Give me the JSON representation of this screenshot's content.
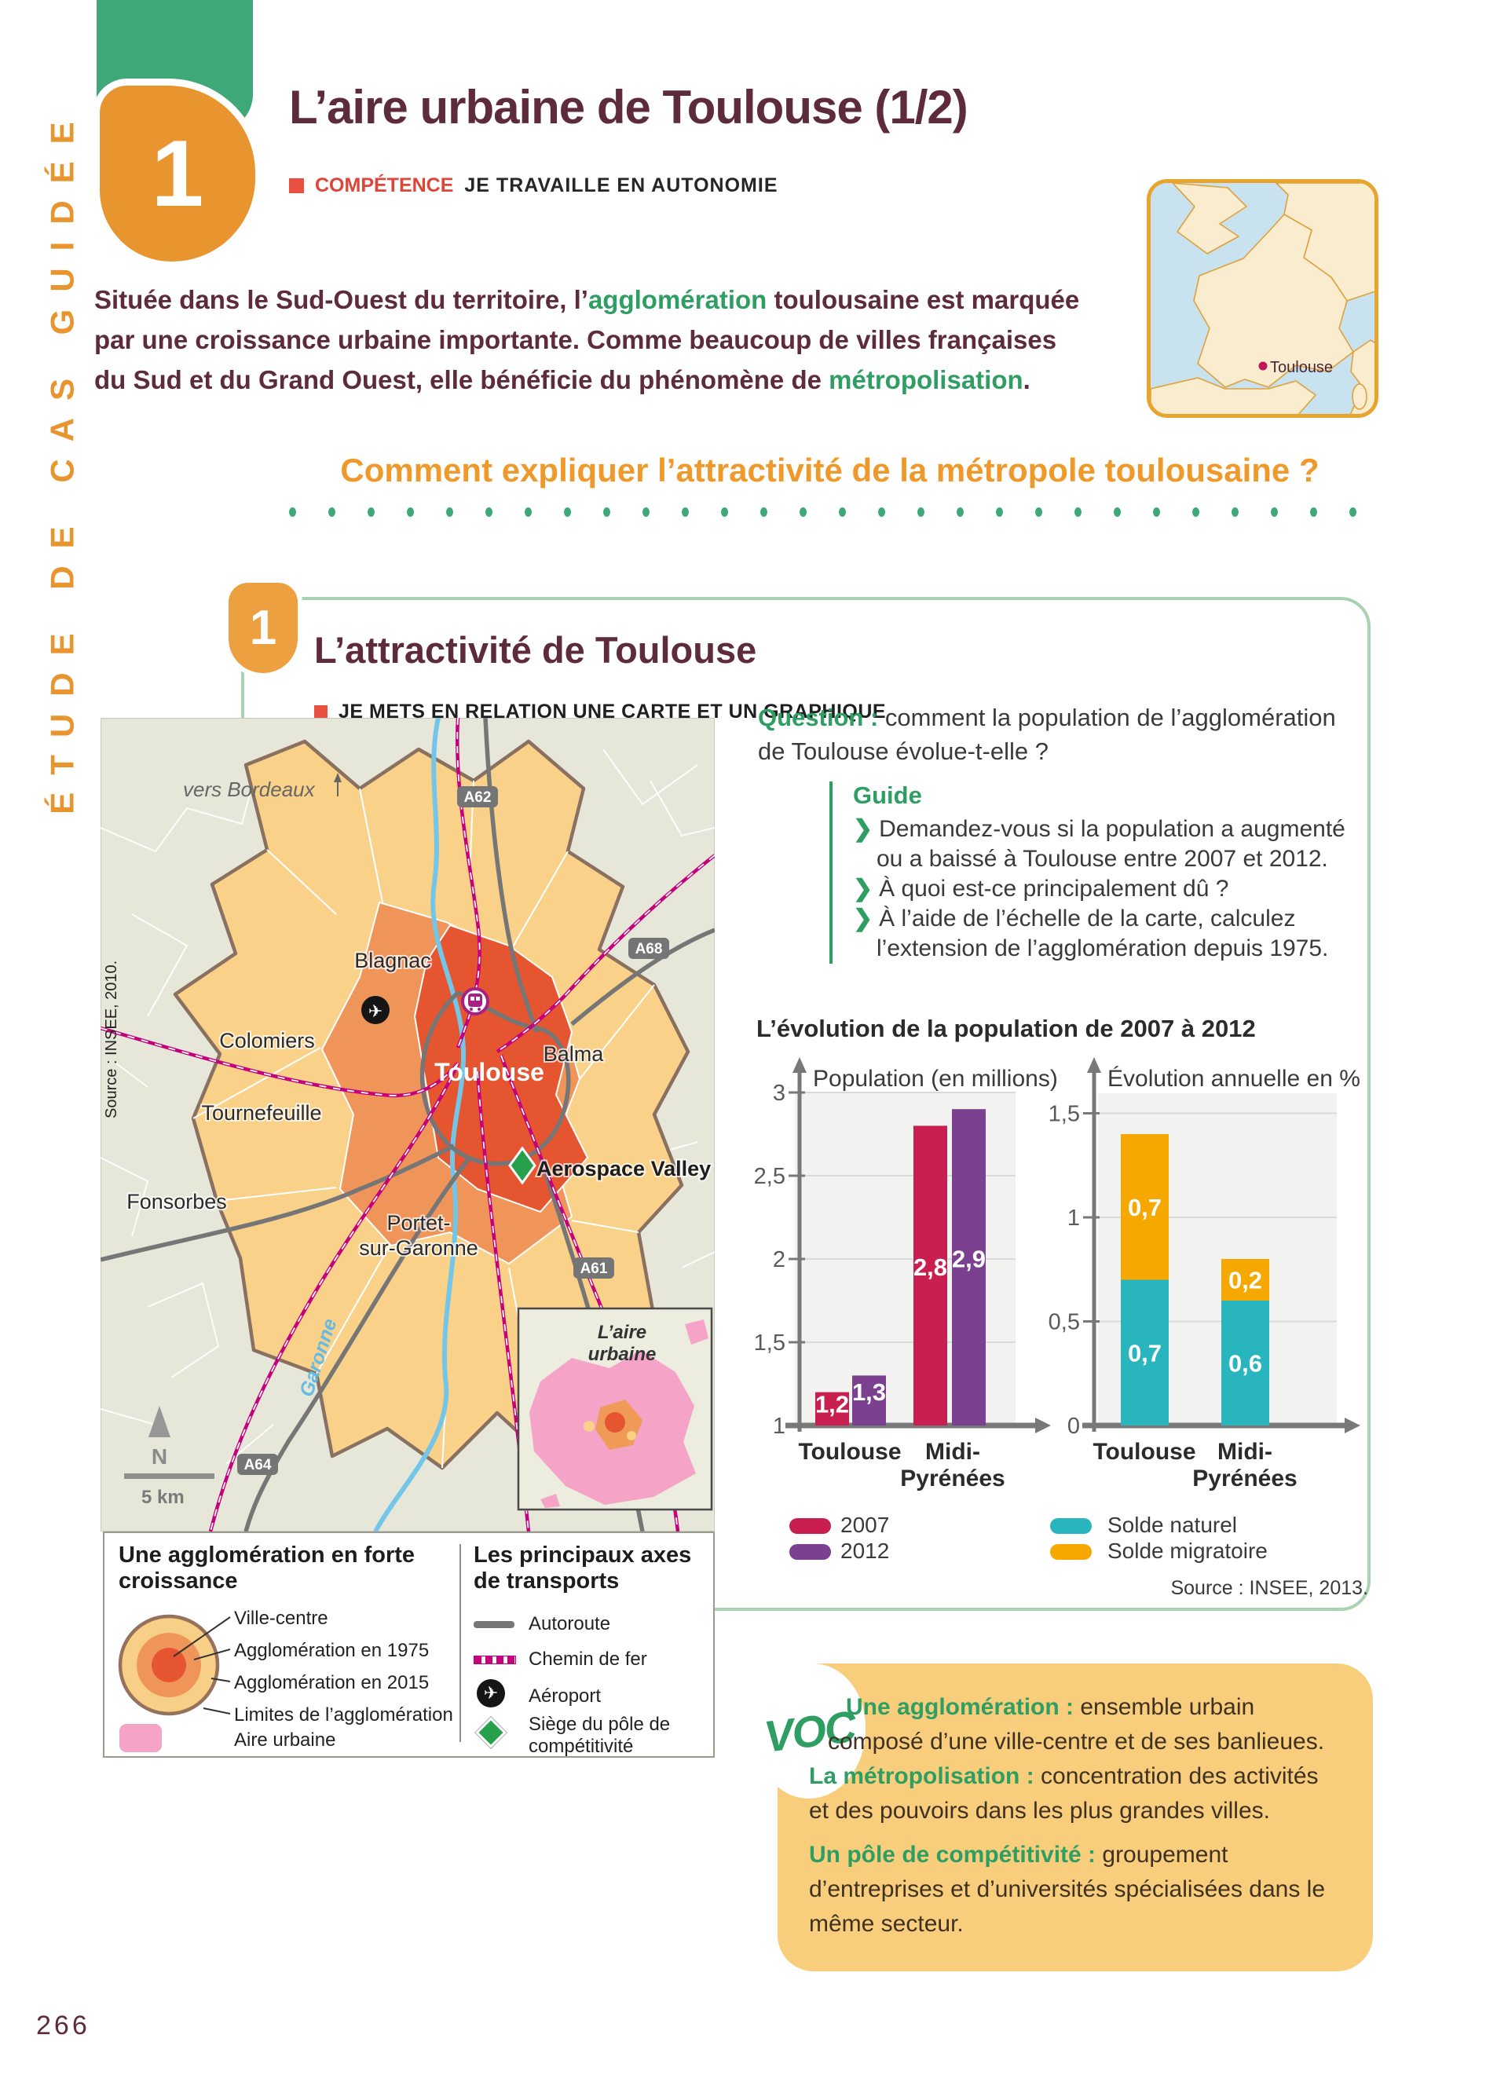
{
  "colors": {
    "accent_orange": "#E8952F",
    "green_tab": "#3EA878",
    "text_maroon": "#5E2B3C",
    "green_text": "#2F9E63",
    "frame_green": "#A8D2B0",
    "competence_red": "#E8503F",
    "question_orange": "#F0992B",
    "chart_red": "#C91F50",
    "chart_purple": "#7B4190",
    "chart_teal": "#29B5BE",
    "chart_yellow": "#F7A800",
    "map_cream": "#FAD189",
    "map_orange": "#F0955A",
    "map_red": "#E5552F",
    "map_outside": "#E6E7D9",
    "pink_aire": "#F5A3C6",
    "rail_magenta": "#C4007D",
    "river_blue": "#74C6E9",
    "voc_bg": "#F8CE7D"
  },
  "sidebar": {
    "vertical_label": "ÉTUDE DE CAS GUIDÉE"
  },
  "header": {
    "chapter_number": "1",
    "title": "L’aire urbaine de Toulouse (1/2)",
    "competence_label": "COMPÉTENCE",
    "competence_text": "JE TRAVAILLE EN AUTONOMIE"
  },
  "intro": {
    "lines": [
      [
        [
          "Située dans le Sud-Ouest du territoire, l’"
        ],
        [
          "agglomération",
          1
        ],
        [
          " toulousaine est marquée"
        ]
      ],
      [
        [
          "par une croissance urbaine importante. Comme beaucoup de villes françaises"
        ]
      ],
      [
        [
          "du Sud et du Grand Ouest, elle bénéficie du phénomène de "
        ],
        [
          "métropolisation",
          1
        ],
        [
          "."
        ]
      ]
    ]
  },
  "france_map": {
    "city": "Toulouse"
  },
  "problem_question": "Comment expliquer l’attractivité de la métropole toulousaine ?",
  "section": {
    "number": "1",
    "title": "L’attractivité de Toulouse",
    "competence": "JE METS EN RELATION UNE CARTE ET UN GRAPHIQUE"
  },
  "map": {
    "source": "Source : INSEE, 2010.",
    "direction_label": "vers Bordeaux",
    "roads": [
      "A62",
      "A68",
      "A61",
      "A64"
    ],
    "cities": [
      "Blagnac",
      "Colomiers",
      "Tournefeuille",
      "Fonsorbes",
      "Balma"
    ],
    "toulouse": "Toulouse",
    "portet_line1": "Portet-",
    "portet_line2": "sur-Garonne",
    "aerospace": "Aerospace Valley",
    "river": "Garonne",
    "compass": "N",
    "scale": "5 km",
    "inset_line1": "L’aire",
    "inset_line2": "urbaine"
  },
  "legend": {
    "left": {
      "heading_lines": [
        "Une agglomération en forte",
        "croissance"
      ],
      "items": [
        "Ville-centre",
        "Agglomération en 1975",
        "Agglomération en 2015",
        "Limites de l’agglomération",
        "Aire urbaine"
      ]
    },
    "right": {
      "heading_lines": [
        "Les principaux axes",
        "de transports"
      ],
      "items": [
        "Autoroute",
        "Chemin de fer",
        "Aéroport",
        "Siège du pôle de compétitivité"
      ]
    }
  },
  "question": {
    "lines": [
      [
        [
          "Question : ",
          1
        ],
        [
          "comment la population de l’agglomération"
        ]
      ],
      [
        [
          "de Toulouse évolue-t-elle ?"
        ]
      ]
    ]
  },
  "guide": {
    "title": "Guide",
    "lines": [
      {
        "c": 1,
        "t": "Demandez-vous si la population a augmenté"
      },
      {
        "c": 0,
        "t": "ou a baissé à Toulouse entre 2007 et 2012."
      },
      {
        "c": 1,
        "t": "À quoi est-ce principalement dû ?"
      },
      {
        "c": 1,
        "t": "À l’aide de l’échelle de la carte, calculez"
      },
      {
        "c": 0,
        "t": "l’extension de l’agglomération depuis 1975."
      }
    ]
  },
  "charts_heading": "L’évolution de la population de 2007 à 2012",
  "chart_data": [
    {
      "type": "bar",
      "title": "L’évolution de la population de 2007 à 2012",
      "ylabel": "Population (en millions)",
      "categories": [
        "Toulouse",
        "Midi-Pyrénées"
      ],
      "categories_lines": [
        [
          "Toulouse"
        ],
        [
          "Midi-",
          "Pyrénées"
        ]
      ],
      "series": [
        {
          "name": "2007",
          "color": "#C91F50",
          "values": [
            1.2,
            2.8
          ]
        },
        {
          "name": "2012",
          "color": "#7B4190",
          "values": [
            1.3,
            2.9
          ]
        }
      ],
      "value_labels": [
        [
          "1,2",
          "2,8"
        ],
        [
          "1,3",
          "2,9"
        ]
      ],
      "ylim": [
        1,
        3
      ],
      "yticks": [
        {
          "v": 1,
          "label": "1"
        },
        {
          "v": 1.5,
          "label": "1,5"
        },
        {
          "v": 2,
          "label": "2"
        },
        {
          "v": 2.5,
          "label": "2,5"
        },
        {
          "v": 3,
          "label": "3"
        }
      ],
      "grid": true,
      "legend_position": "bottom-left"
    },
    {
      "type": "stacked-bar",
      "ylabel": "Évolution annuelle en %",
      "categories": [
        "Toulouse",
        "Midi-Pyrénées"
      ],
      "categories_lines": [
        [
          "Toulouse"
        ],
        [
          "Midi-",
          "Pyrénées"
        ]
      ],
      "series": [
        {
          "name": "Solde naturel",
          "color": "#29B5BE",
          "values": [
            0.7,
            0.6
          ]
        },
        {
          "name": "Solde migratoire",
          "color": "#F7A800",
          "values": [
            0.7,
            0.2
          ]
        }
      ],
      "value_labels": [
        [
          "0,7",
          "0,6"
        ],
        [
          "0,7",
          "0,2"
        ]
      ],
      "ylim": [
        0,
        1.55
      ],
      "yticks": [
        {
          "v": 0,
          "label": "0"
        },
        {
          "v": 0.5,
          "label": "0,5"
        },
        {
          "v": 1,
          "label": "1"
        },
        {
          "v": 1.5,
          "label": "1,5"
        }
      ],
      "grid": true,
      "legend_position": "bottom-left",
      "source": "Source : INSEE, 2013."
    }
  ],
  "voc": {
    "label": "VOC",
    "lines": [
      {
        "indent": 85,
        "seg": [
          [
            "Une agglomération :",
            1
          ],
          [
            " ensemble urbain"
          ]
        ]
      },
      {
        "indent": 62,
        "seg": [
          [
            "composé d’une ville-centre et de ses banlieues."
          ]
        ]
      },
      {
        "indent": 38,
        "seg": [
          [
            "La métropolisation :",
            1
          ],
          [
            " concentration des activités"
          ]
        ]
      },
      {
        "indent": 38,
        "seg": [
          [
            "et des pouvoirs dans les plus grandes villes."
          ]
        ]
      },
      {
        "indent": 38,
        "mt": 12,
        "seg": [
          [
            "Un pôle de compétitivité :",
            1
          ],
          [
            " groupement"
          ]
        ]
      },
      {
        "indent": 38,
        "seg": [
          [
            "d’entreprises et d’universités spécialisées dans le"
          ]
        ]
      },
      {
        "indent": 38,
        "seg": [
          [
            "même secteur."
          ]
        ]
      }
    ]
  },
  "page_number": "266"
}
